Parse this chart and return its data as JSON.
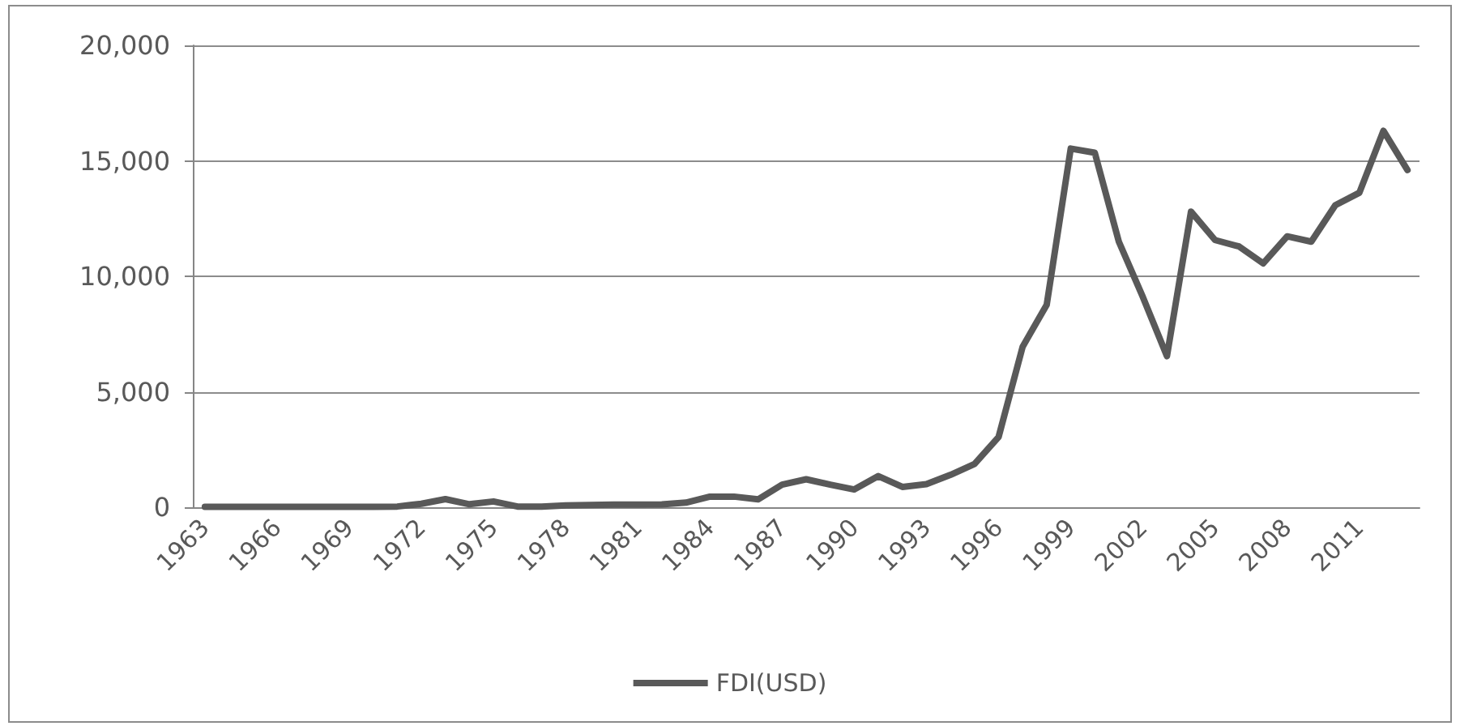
{
  "chart_data": {
    "type": "line",
    "categories": [
      "1963",
      null,
      null,
      "1966",
      null,
      null,
      "1969",
      null,
      null,
      "1972",
      null,
      null,
      "1975",
      null,
      null,
      "1978",
      null,
      null,
      "1981",
      null,
      null,
      "1984",
      null,
      null,
      "1987",
      null,
      null,
      "1990",
      null,
      null,
      "1993",
      null,
      null,
      "1996",
      null,
      null,
      "1999",
      null,
      null,
      "2002",
      null,
      null,
      "2005",
      null,
      null,
      "2008",
      null,
      null,
      "2011",
      null,
      null
    ],
    "series": [
      {
        "name": "FDI(USD)",
        "color": "#595959",
        "values": [
          20,
          20,
          20,
          20,
          20,
          20,
          20,
          20,
          30,
          150,
          350,
          130,
          250,
          30,
          30,
          80,
          100,
          110,
          110,
          120,
          200,
          460,
          460,
          340,
          980,
          1210,
          980,
          770,
          1350,
          880,
          1000,
          1400,
          1870,
          3040,
          6950,
          8760,
          15530,
          15350,
          11500,
          9100,
          6540,
          12800,
          11570,
          11290,
          10560,
          11730,
          11500,
          13080,
          13620,
          16300,
          14600
        ]
      }
    ],
    "ylim": [
      0,
      20000
    ],
    "yticks": [
      0,
      {
        "value": 5000,
        "label": "5,000"
      },
      {
        "value": 10000,
        "label": "10,000"
      },
      {
        "value": 15000,
        "label": "15,000"
      },
      {
        "value": 20000,
        "label": "20,000"
      }
    ],
    "grid": "y",
    "legend": "bottom",
    "marker": "none",
    "line_style": "solid"
  }
}
